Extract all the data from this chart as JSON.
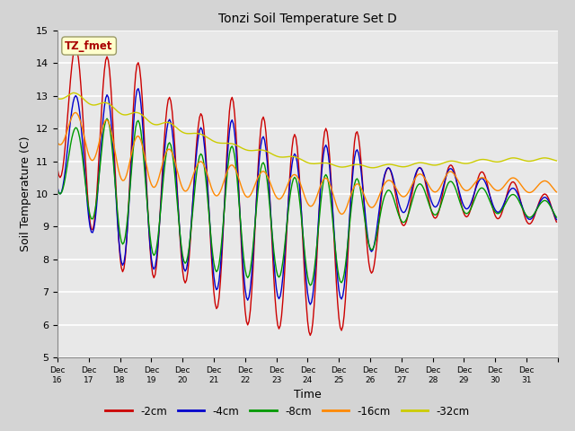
{
  "title": "Tonzi Soil Temperature Set D",
  "xlabel": "Time",
  "ylabel": "Soil Temperature (C)",
  "ylim": [
    5.0,
    15.0
  ],
  "yticks": [
    5.0,
    6.0,
    7.0,
    8.0,
    9.0,
    10.0,
    11.0,
    12.0,
    13.0,
    14.0,
    15.0
  ],
  "plot_bg_color": "#e8e8e8",
  "fig_bg_color": "#d4d4d4",
  "grid_color": "#ffffff",
  "series_colors": {
    "-2cm": "#cc0000",
    "-4cm": "#0000cc",
    "-8cm": "#009900",
    "-16cm": "#ff8800",
    "-32cm": "#cccc00"
  },
  "legend_label": "TZ_fmet",
  "legend_bg": "#ffffcc",
  "legend_border": "#aaaaaa",
  "xtick_labels": [
    "Dec 16",
    "Dec 17",
    "Dec 18",
    "Dec 19",
    "Dec 20",
    "Dec 21",
    "Dec 22",
    "Dec 23",
    "Dec 24",
    "Dec 25",
    "Dec 26",
    "Dec 27",
    "Dec 28",
    "Dec 29",
    "Dec 30",
    "Dec 31"
  ],
  "pts_per_day": 24,
  "n_days": 16,
  "mid_temps": {
    "-2cm": [
      12.5,
      11.0,
      10.8,
      10.2,
      9.8,
      9.5,
      9.2,
      8.8,
      8.8,
      9.0,
      9.8,
      10.0,
      10.1,
      10.0,
      9.8,
      9.5
    ],
    "-4cm": [
      11.5,
      10.5,
      10.5,
      10.0,
      9.8,
      9.5,
      9.3,
      9.0,
      9.0,
      9.2,
      10.0,
      10.2,
      10.2,
      10.0,
      9.8,
      9.5
    ],
    "-8cm": [
      11.0,
      10.5,
      10.3,
      9.8,
      9.5,
      9.5,
      9.2,
      9.0,
      8.8,
      9.0,
      9.5,
      9.8,
      9.9,
      9.8,
      9.7,
      9.5
    ],
    "-16cm": [
      12.0,
      11.5,
      11.0,
      10.8,
      10.5,
      10.4,
      10.3,
      10.2,
      10.0,
      9.8,
      10.1,
      10.3,
      10.4,
      10.3,
      10.3,
      10.2
    ],
    "-32cm": [
      13.0,
      12.7,
      12.4,
      12.1,
      11.8,
      11.5,
      11.3,
      11.1,
      10.9,
      10.85,
      10.85,
      10.9,
      10.95,
      11.0,
      11.05,
      11.05
    ]
  },
  "amplitudes": {
    "-2cm": [
      2.0,
      3.2,
      3.3,
      2.8,
      2.6,
      3.5,
      3.2,
      3.0,
      3.2,
      3.0,
      1.0,
      0.8,
      0.8,
      0.7,
      0.6,
      0.5
    ],
    "-4cm": [
      1.5,
      2.5,
      2.8,
      2.3,
      2.2,
      2.8,
      2.5,
      2.2,
      2.5,
      2.2,
      0.8,
      0.6,
      0.6,
      0.5,
      0.4,
      0.4
    ],
    "-8cm": [
      1.0,
      1.8,
      2.0,
      1.8,
      1.7,
      2.0,
      1.8,
      1.5,
      1.8,
      1.5,
      0.6,
      0.5,
      0.5,
      0.4,
      0.3,
      0.3
    ],
    "-16cm": [
      0.5,
      0.8,
      0.8,
      0.6,
      0.5,
      0.5,
      0.4,
      0.4,
      0.5,
      0.5,
      0.3,
      0.3,
      0.3,
      0.2,
      0.2,
      0.2
    ],
    "-32cm": [
      0.1,
      0.1,
      0.1,
      0.1,
      0.05,
      0.05,
      0.05,
      0.05,
      0.05,
      0.05,
      0.05,
      0.05,
      0.05,
      0.05,
      0.05,
      0.05
    ]
  }
}
